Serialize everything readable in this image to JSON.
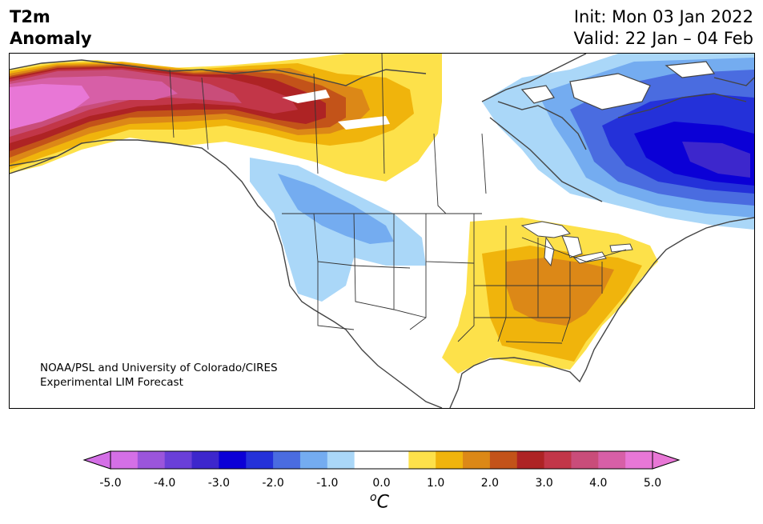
{
  "header": {
    "variable": "T2m",
    "subtitle": "Anomaly",
    "init_label": "Init: Mon 03 Jan 2022",
    "valid_label": "Valid: 22 Jan – 04 Feb"
  },
  "map": {
    "region": "North America",
    "credit_line1": "NOAA/PSL and University of Colorado/CIRES",
    "credit_line2": "Experimental LIM Forecast",
    "anomaly_regions": [
      {
        "area": "Alaska / Yukon",
        "level": 4.5
      },
      {
        "area": "Northern Canada interior",
        "level": 2.5
      },
      {
        "area": "Northern Rockies / Pacific NW",
        "level": -1.5
      },
      {
        "area": "Southeastern US / Appalachians",
        "level": 2.0
      },
      {
        "area": "Texas / Gulf coast",
        "level": 1.0
      },
      {
        "area": "Eastern Canada / Labrador",
        "level": -3.5
      },
      {
        "area": "Hudson Bay region",
        "level": -1.0
      }
    ]
  },
  "colorbar": {
    "unit_base": "C",
    "unit_prefix": "o",
    "ticks": [
      "-5.0",
      "-4.0",
      "-3.0",
      "-2.0",
      "-1.0",
      "0.0",
      "1.0",
      "2.0",
      "3.0",
      "4.0",
      "5.0"
    ],
    "colors": [
      "#d46fe6",
      "#9b55dc",
      "#6a3fd8",
      "#3d27cc",
      "#0b00d6",
      "#2431d9",
      "#4a6ce0",
      "#74acf0",
      "#aad7f8",
      "#ffffff",
      "#ffffff",
      "#fde14a",
      "#f0b40c",
      "#dc8817",
      "#c35319",
      "#ae2324",
      "#c23648",
      "#c94d7a",
      "#d75fa7",
      "#e877d6"
    ],
    "under_color": "#d46fe6",
    "over_color": "#e877d6"
  }
}
